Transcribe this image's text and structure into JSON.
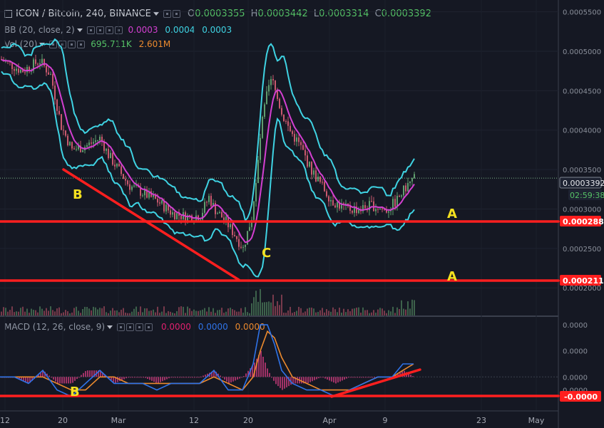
{
  "header": {
    "symbol": "ICON / Bitcoin, 240, BINANCE",
    "o_label": "O",
    "o_value": "0.0003355",
    "h_label": "H",
    "h_value": "0.0003442",
    "l_label": "L",
    "l_value": "0.0003314",
    "c_label": "C",
    "c_value": "0.0003392"
  },
  "indicators": {
    "bb": {
      "label": "BB (20, close, 2)",
      "v1": "0.0003",
      "v2": "0.0004",
      "v3": "0.0003"
    },
    "vol": {
      "label": "Vol (20)",
      "v1": "695.711K",
      "v2": "2.601M"
    },
    "macd": {
      "label": "MACD (12, 26, close, 9)",
      "v1": "0.0000",
      "v2": "0.0000",
      "v3": "0.0000"
    }
  },
  "colors": {
    "background": "#151823",
    "bb_band": "#3fd3e3",
    "bb_mid": "#d43fd1",
    "up": "#5f9e6e",
    "down": "#c9586e",
    "price_line": "#d8d8d8",
    "annotation": "#ff1f1f",
    "label_text": "#f5e11f",
    "macd": "#2f73e8",
    "signal": "#ec8a2e"
  },
  "annotations": {
    "label_b_top": "B",
    "label_a_upper": "A",
    "label_a_lower": "A",
    "label_c": "C",
    "label_b_macd": "B"
  },
  "chart_data": [
    {
      "type": "candlestick",
      "title": "ICON / Bitcoin, 240, BINANCE",
      "ylim": [
        0.000165,
        0.000565
      ],
      "y_ticks": [
        "0.0005500",
        "0.0005000",
        "0.0004500",
        "0.0004000",
        "0.0003500",
        "0.0003000",
        "0.0002500",
        "0.0002000"
      ],
      "x_ticks": [
        "12",
        "20",
        "Mar",
        "12",
        "20",
        "Apr",
        "9",
        "23",
        "May"
      ],
      "price_anchors": [
        [
          0,
          0.00049
        ],
        [
          30,
          0.000475
        ],
        [
          55,
          0.000488
        ],
        [
          70,
          0.00047
        ],
        [
          85,
          0.000405
        ],
        [
          100,
          0.000375
        ],
        [
          120,
          0.00038
        ],
        [
          140,
          0.00039
        ],
        [
          150,
          0.00037
        ],
        [
          165,
          0.00035
        ],
        [
          180,
          0.00033
        ],
        [
          200,
          0.00032
        ],
        [
          220,
          0.00031
        ],
        [
          240,
          0.000295
        ],
        [
          260,
          0.00029
        ],
        [
          280,
          0.000292
        ],
        [
          292,
          0.000315
        ],
        [
          300,
          0.0003
        ],
        [
          315,
          0.000285
        ],
        [
          330,
          0.000265
        ],
        [
          340,
          0.00025
        ],
        [
          352,
          0.00029
        ],
        [
          358,
          0.00033
        ],
        [
          365,
          0.0004
        ],
        [
          372,
          0.00044
        ],
        [
          380,
          0.000465
        ],
        [
          388,
          0.00044
        ],
        [
          395,
          0.00042
        ],
        [
          405,
          0.0004
        ],
        [
          420,
          0.00038
        ],
        [
          435,
          0.00035
        ],
        [
          450,
          0.00033
        ],
        [
          465,
          0.00031
        ],
        [
          485,
          0.0003
        ],
        [
          505,
          0.0003
        ],
        [
          520,
          0.000305
        ],
        [
          540,
          0.000298
        ],
        [
          555,
          0.00031
        ],
        [
          570,
          0.00033
        ],
        [
          580,
          0.000339
        ]
      ],
      "last_price": "0.0003392",
      "countdown": "02:59:38",
      "level_upper": "0.0002884",
      "level_lower": "0.0002112"
    },
    {
      "type": "line",
      "title": "MACD (12, 26, close, 9)",
      "ylim": [
        -5e-05,
        9e-05
      ],
      "y_ticks": [
        "0.0000",
        "0.0000",
        "0.0000",
        "0.0000"
      ],
      "level_label": "-0.0000",
      "series": [
        {
          "name": "MACD",
          "x": [
            0,
            20,
            40,
            60,
            80,
            100,
            120,
            140,
            160,
            180,
            200,
            220,
            240,
            260,
            280,
            300,
            320,
            340,
            355,
            365,
            375,
            385,
            395,
            410,
            430,
            450,
            470,
            490,
            510,
            530,
            550,
            565,
            580
          ],
          "values": [
            0.0,
            0.0,
            -1e-05,
            1e-05,
            -2e-05,
            -3e-05,
            -1e-05,
            1e-05,
            -1e-05,
            -1e-05,
            -1e-05,
            -2e-05,
            -1e-05,
            -1e-05,
            -1e-05,
            1e-05,
            -2e-05,
            -2e-05,
            2e-05,
            8e-05,
            8e-05,
            5e-05,
            1e-05,
            -1e-05,
            -2e-05,
            -2e-05,
            -3e-05,
            -2e-05,
            -1e-05,
            0.0,
            0.0,
            2e-05,
            2e-05
          ]
        },
        {
          "name": "Signal",
          "x": [
            0,
            20,
            40,
            60,
            80,
            100,
            120,
            140,
            160,
            180,
            200,
            220,
            240,
            260,
            280,
            300,
            320,
            340,
            355,
            365,
            375,
            385,
            395,
            410,
            430,
            450,
            470,
            490,
            510,
            530,
            550,
            565,
            580
          ],
          "values": [
            0.0,
            0.0,
            0.0,
            0.0,
            -1e-05,
            -2e-05,
            -2e-05,
            0.0,
            0.0,
            -1e-05,
            -1e-05,
            -1e-05,
            -1e-05,
            -1e-05,
            -1e-05,
            0.0,
            -1e-05,
            -2e-05,
            0.0,
            4e-05,
            7e-05,
            6e-05,
            3e-05,
            0.0,
            -1e-05,
            -2e-05,
            -2e-05,
            -2e-05,
            -1e-05,
            0.0,
            0.0,
            1e-05,
            2e-05
          ]
        }
      ]
    }
  ]
}
